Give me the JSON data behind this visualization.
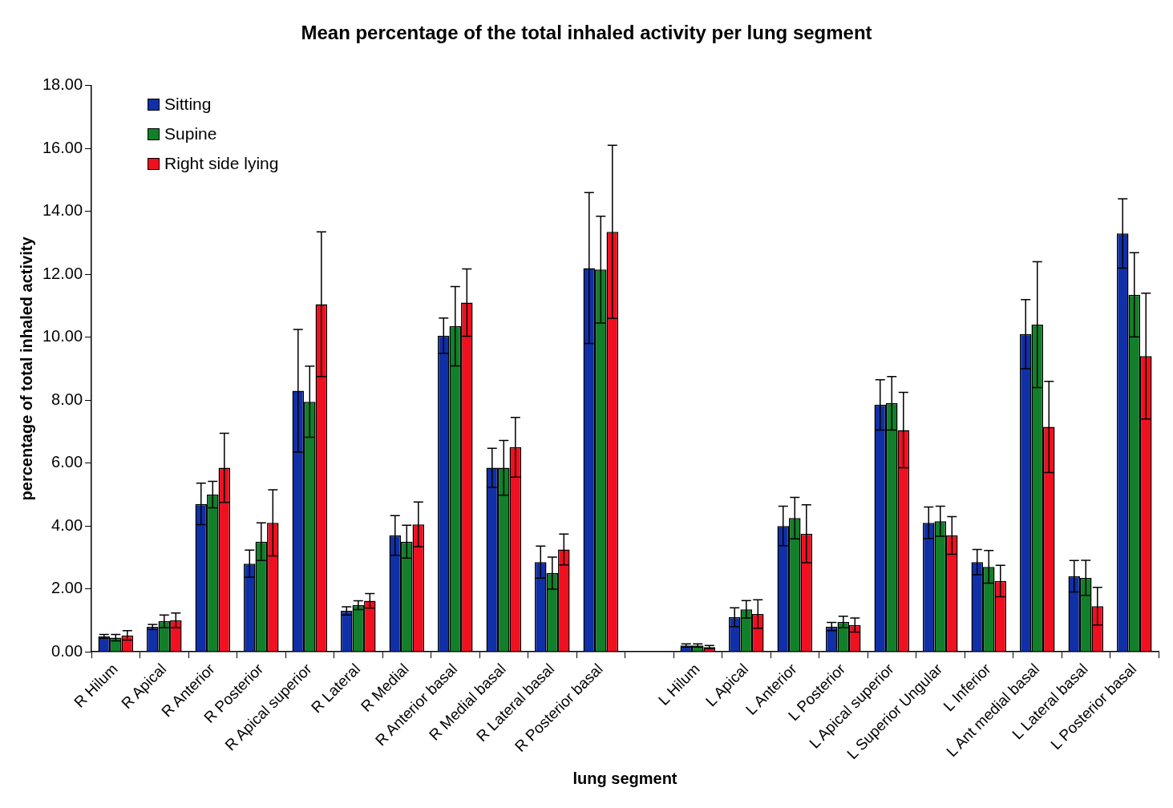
{
  "chart_data": {
    "type": "bar",
    "title": "Mean percentage of the total inhaled activity per lung segment",
    "xlabel": "lung segment",
    "ylabel": "percentage of total inhaled activity",
    "categories": [
      "R Hilum",
      "R Apical",
      "R Anterior",
      "R Posterior",
      "R Apical superior",
      "R Lateral",
      "R Medial",
      "R Anterior basal",
      "R Medial basal",
      "R Lateral basal",
      "R Posterior basal",
      null,
      "L Hilum",
      "L Apical",
      "L Anterior",
      "L Posterior",
      "L Apical superior",
      "L Superior Ungular",
      "L Inferior",
      "L Ant medial basal",
      "L Lateral basal",
      "L Posterior basal"
    ],
    "series": [
      {
        "name": "Sitting",
        "color": "#1030a8",
        "values": [
          0.49,
          0.79,
          4.7,
          2.8,
          8.3,
          1.3,
          3.7,
          10.05,
          5.85,
          2.85,
          12.2,
          null,
          0.2,
          1.1,
          4.0,
          0.8,
          7.85,
          4.1,
          2.85,
          10.1,
          2.4,
          13.3
        ],
        "errors": [
          0.06,
          0.08,
          0.66,
          0.43,
          1.95,
          0.13,
          0.63,
          0.56,
          0.62,
          0.51,
          2.4,
          null,
          0.05,
          0.3,
          0.63,
          0.13,
          0.8,
          0.5,
          0.4,
          1.1,
          0.5,
          1.1
        ]
      },
      {
        "name": "Supine",
        "color": "#12802a",
        "values": [
          0.45,
          0.97,
          5.0,
          3.5,
          7.95,
          1.48,
          3.5,
          10.35,
          5.85,
          2.5,
          12.15,
          null,
          0.2,
          1.35,
          4.25,
          0.95,
          7.9,
          4.15,
          2.7,
          10.4,
          2.35,
          11.35
        ],
        "errors": [
          0.1,
          0.2,
          0.42,
          0.6,
          1.13,
          0.14,
          0.52,
          1.26,
          0.87,
          0.51,
          1.7,
          null,
          0.05,
          0.28,
          0.66,
          0.18,
          0.85,
          0.48,
          0.52,
          2.0,
          0.56,
          1.34
        ]
      },
      {
        "name": "Right side lying",
        "color": "#f01020",
        "values": [
          0.52,
          1.0,
          5.85,
          4.1,
          11.05,
          1.62,
          4.05,
          11.1,
          6.5,
          3.25,
          13.35,
          null,
          0.15,
          1.2,
          3.75,
          0.85,
          7.05,
          3.7,
          2.25,
          7.15,
          1.45,
          9.4
        ],
        "errors": [
          0.15,
          0.23,
          1.1,
          1.05,
          2.3,
          0.23,
          0.71,
          1.07,
          0.95,
          0.49,
          2.75,
          null,
          0.05,
          0.45,
          0.92,
          0.22,
          1.2,
          0.6,
          0.5,
          1.45,
          0.6,
          2.0
        ]
      }
    ],
    "ylim": [
      0,
      18
    ],
    "yticks": [
      {
        "value": 0,
        "label": "0.00"
      },
      {
        "value": 2,
        "label": "2.00"
      },
      {
        "value": 4,
        "label": "4.00"
      },
      {
        "value": 6,
        "label": "6.00"
      },
      {
        "value": 8,
        "label": "8.00"
      },
      {
        "value": 10,
        "label": "10.00"
      },
      {
        "value": 12,
        "label": "12.00"
      },
      {
        "value": 14,
        "label": "14.00"
      },
      {
        "value": 16,
        "label": "16.00"
      },
      {
        "value": 18,
        "label": "18.00"
      }
    ],
    "grid": false,
    "legend": "top left"
  }
}
